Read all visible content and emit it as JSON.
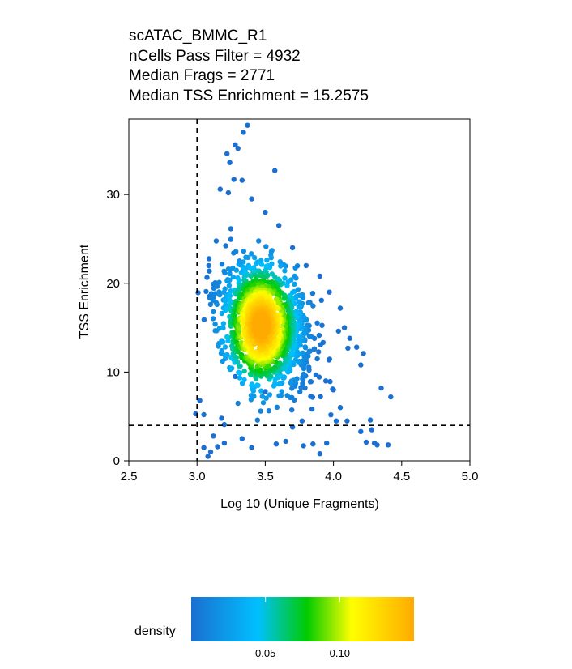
{
  "chart_data": {
    "type": "scatter",
    "title_lines": [
      "scATAC_BMMC_R1",
      "nCells Pass Filter = 4932",
      "Median Frags = 2771",
      "Median TSS Enrichment = 15.2575"
    ],
    "xlabel": "Log 10 (Unique Fragments)",
    "ylabel": "TSS Enrichment",
    "xlim": [
      2.5,
      5.0
    ],
    "ylim": [
      0,
      38.5
    ],
    "xticks": [
      2.5,
      3.0,
      3.5,
      4.0,
      4.5,
      5.0
    ],
    "xtick_labels": [
      "2.5",
      "3.0",
      "3.5",
      "4.0",
      "4.5",
      "5.0"
    ],
    "yticks": [
      0,
      10,
      20,
      30
    ],
    "ytick_labels": [
      "0",
      "10",
      "20",
      "30"
    ],
    "thresholds": {
      "x": 3.0,
      "y": 4
    },
    "grid": false,
    "points_color_by": "density",
    "center": {
      "x": 3.5,
      "y": 15.2
    },
    "outliers": [
      [
        3.37,
        37.8
      ],
      [
        3.34,
        37.0
      ],
      [
        3.57,
        32.7
      ],
      [
        3.28,
        35.6
      ],
      [
        3.3,
        35.2
      ],
      [
        3.22,
        34.6
      ],
      [
        3.24,
        33.6
      ],
      [
        3.27,
        31.7
      ],
      [
        3.33,
        31.6
      ],
      [
        3.17,
        30.6
      ],
      [
        3.23,
        30.2
      ],
      [
        3.4,
        29.5
      ],
      [
        3.5,
        28.0
      ],
      [
        3.6,
        26.5
      ],
      [
        3.7,
        24.0
      ],
      [
        3.8,
        22.0
      ],
      [
        3.9,
        20.8
      ],
      [
        3.97,
        19.0
      ],
      [
        4.05,
        17.2
      ],
      [
        4.08,
        15.0
      ],
      [
        4.12,
        13.8
      ],
      [
        4.17,
        12.8
      ],
      [
        4.22,
        12.1
      ],
      [
        4.2,
        10.8
      ],
      [
        4.35,
        8.2
      ],
      [
        4.42,
        7.2
      ],
      [
        4.0,
        8.0
      ],
      [
        4.05,
        6.0
      ],
      [
        3.1,
        1.0
      ],
      [
        3.08,
        0.5
      ],
      [
        3.15,
        1.6
      ],
      [
        3.2,
        2.0
      ],
      [
        3.33,
        2.5
      ],
      [
        3.4,
        1.5
      ],
      [
        3.58,
        1.9
      ],
      [
        3.65,
        2.2
      ],
      [
        3.78,
        1.7
      ],
      [
        3.85,
        1.9
      ],
      [
        3.9,
        0.8
      ],
      [
        3.95,
        2.0
      ],
      [
        4.1,
        4.5
      ],
      [
        4.2,
        3.3
      ],
      [
        4.24,
        2.1
      ],
      [
        4.28,
        3.5
      ],
      [
        4.3,
        2.0
      ],
      [
        4.32,
        1.8
      ],
      [
        4.4,
        1.8
      ],
      [
        4.27,
        4.6
      ],
      [
        4.02,
        4.5
      ],
      [
        3.77,
        4.5
      ],
      [
        3.7,
        3.8
      ],
      [
        3.2,
        4.1
      ],
      [
        3.18,
        4.8
      ],
      [
        2.99,
        5.3
      ],
      [
        3.02,
        6.8
      ],
      [
        3.05,
        1.5
      ],
      [
        3.12,
        2.8
      ],
      [
        3.05,
        5.2
      ],
      [
        3.5,
        7.8
      ],
      [
        3.28,
        9.5
      ]
    ],
    "colorbar": {
      "title": "density",
      "ticks": [
        0.05,
        0.1
      ],
      "tick_labels": [
        "0.05",
        "0.10"
      ],
      "range": [
        0,
        0.15
      ],
      "colors": [
        "#1a6fd0",
        "#00c0ff",
        "#00cc00",
        "#ffff00",
        "#ffaa00"
      ]
    }
  }
}
